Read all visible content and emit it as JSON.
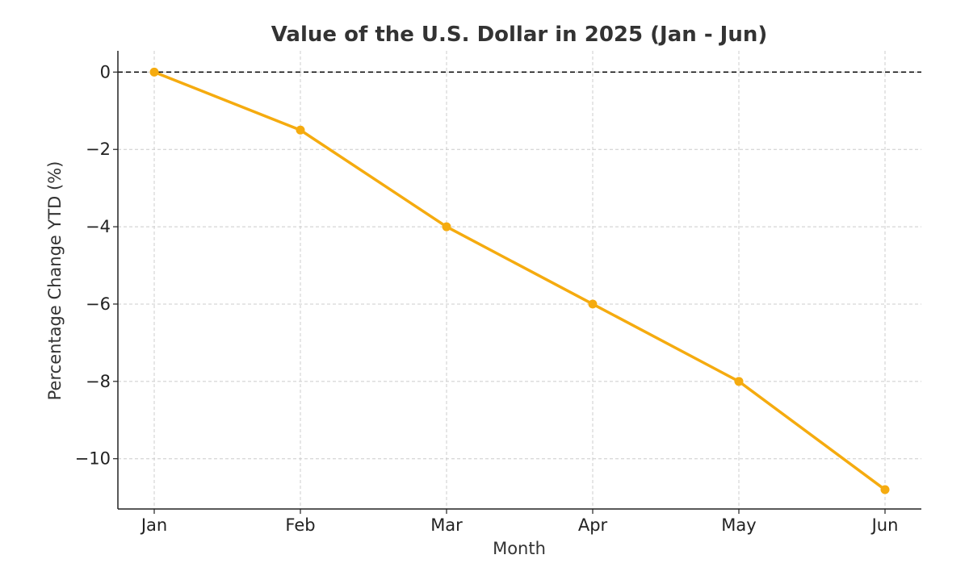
{
  "chart_data": {
    "type": "line",
    "title": "Value of the U.S. Dollar in 2025 (Jan - Jun)",
    "xlabel": "Month",
    "ylabel": "Percentage Change YTD (%)",
    "categories": [
      "Jan",
      "Feb",
      "Mar",
      "Apr",
      "May",
      "Jun"
    ],
    "series": [
      {
        "values": [
          0,
          -1.5,
          -4,
          -6,
          -8,
          -10.8
        ],
        "color": "#f5ab0f"
      }
    ],
    "ylim": [
      -11.3,
      0.55
    ],
    "yticks": [
      0,
      -2,
      -4,
      -6,
      -8,
      -10
    ],
    "ytick_labels": [
      "0",
      "−2",
      "−4",
      "−6",
      "−8",
      "−10"
    ],
    "grid": true,
    "reference_line": {
      "y": 0,
      "style": "dashed",
      "color": "#000000"
    }
  }
}
